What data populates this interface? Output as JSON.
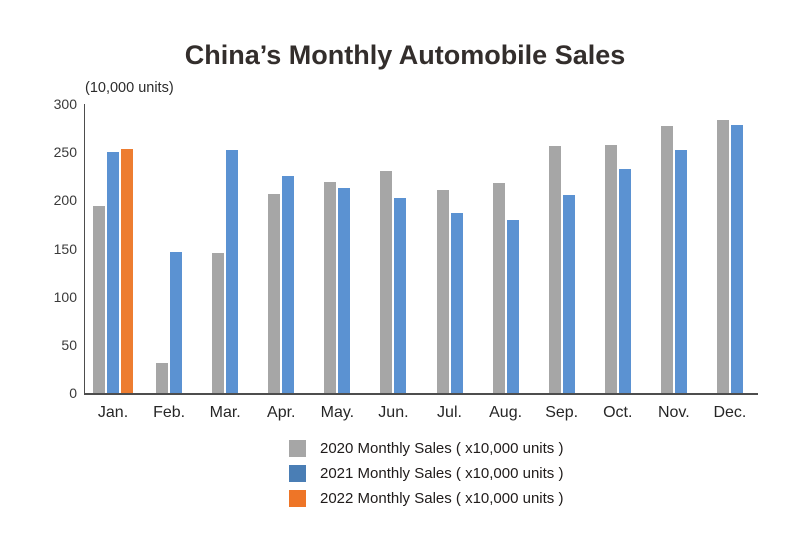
{
  "chart_data": {
    "type": "bar",
    "title": "China’s Monthly Automobile Sales",
    "unit_label": "(10,000 units)",
    "categories": [
      "Jan.",
      "Feb.",
      "Mar.",
      "Apr.",
      "May.",
      "Jun.",
      "Jul.",
      "Aug.",
      "Sep.",
      "Oct.",
      "Nov.",
      "Dec."
    ],
    "series": [
      {
        "id": "2020",
        "name": "2020 Monthly Sales ( x10,000 units )",
        "color": "#a6a6a6",
        "values": [
          194,
          31,
          145,
          207,
          219,
          230,
          211,
          218,
          256,
          257,
          277,
          283
        ]
      },
      {
        "id": "2021",
        "name": "2021 Monthly Sales ( x10,000 units )",
        "color": "#5b92d2",
        "values": [
          250,
          146,
          252,
          225,
          213,
          202,
          187,
          180,
          206,
          233,
          252,
          278
        ]
      },
      {
        "id": "2022",
        "name": "2022 Monthly Sales ( x10,000 units )",
        "color": "#ed7d31",
        "values": [
          253,
          null,
          null,
          null,
          null,
          null,
          null,
          null,
          null,
          null,
          null,
          null
        ]
      }
    ],
    "ylim": [
      0,
      300
    ],
    "yticks": [
      0,
      50,
      100,
      150,
      200,
      250,
      300
    ],
    "grid": false,
    "legend_position": "bottom"
  },
  "legend": {
    "items": [
      {
        "id": "2020",
        "label": "2020 Monthly Sales ( x10,000 units )",
        "swatch_color": "#a6a6a6"
      },
      {
        "id": "2021",
        "label": "2021 Monthly Sales ( x10,000 units )",
        "swatch_color": "#4a7eb5"
      },
      {
        "id": "2022",
        "label": "2022 Monthly Sales ( x10,000 units )",
        "swatch_color": "#ee7527"
      }
    ]
  },
  "colors": {
    "background": "#ffffff",
    "title_text": "#332e2c",
    "axis_line": "#4d4d4d",
    "tick_text": "#3a3a3a",
    "bar_gray": "#a6a6a6",
    "bar_blue": "#5b92d2",
    "bar_orange": "#ed7d31"
  }
}
